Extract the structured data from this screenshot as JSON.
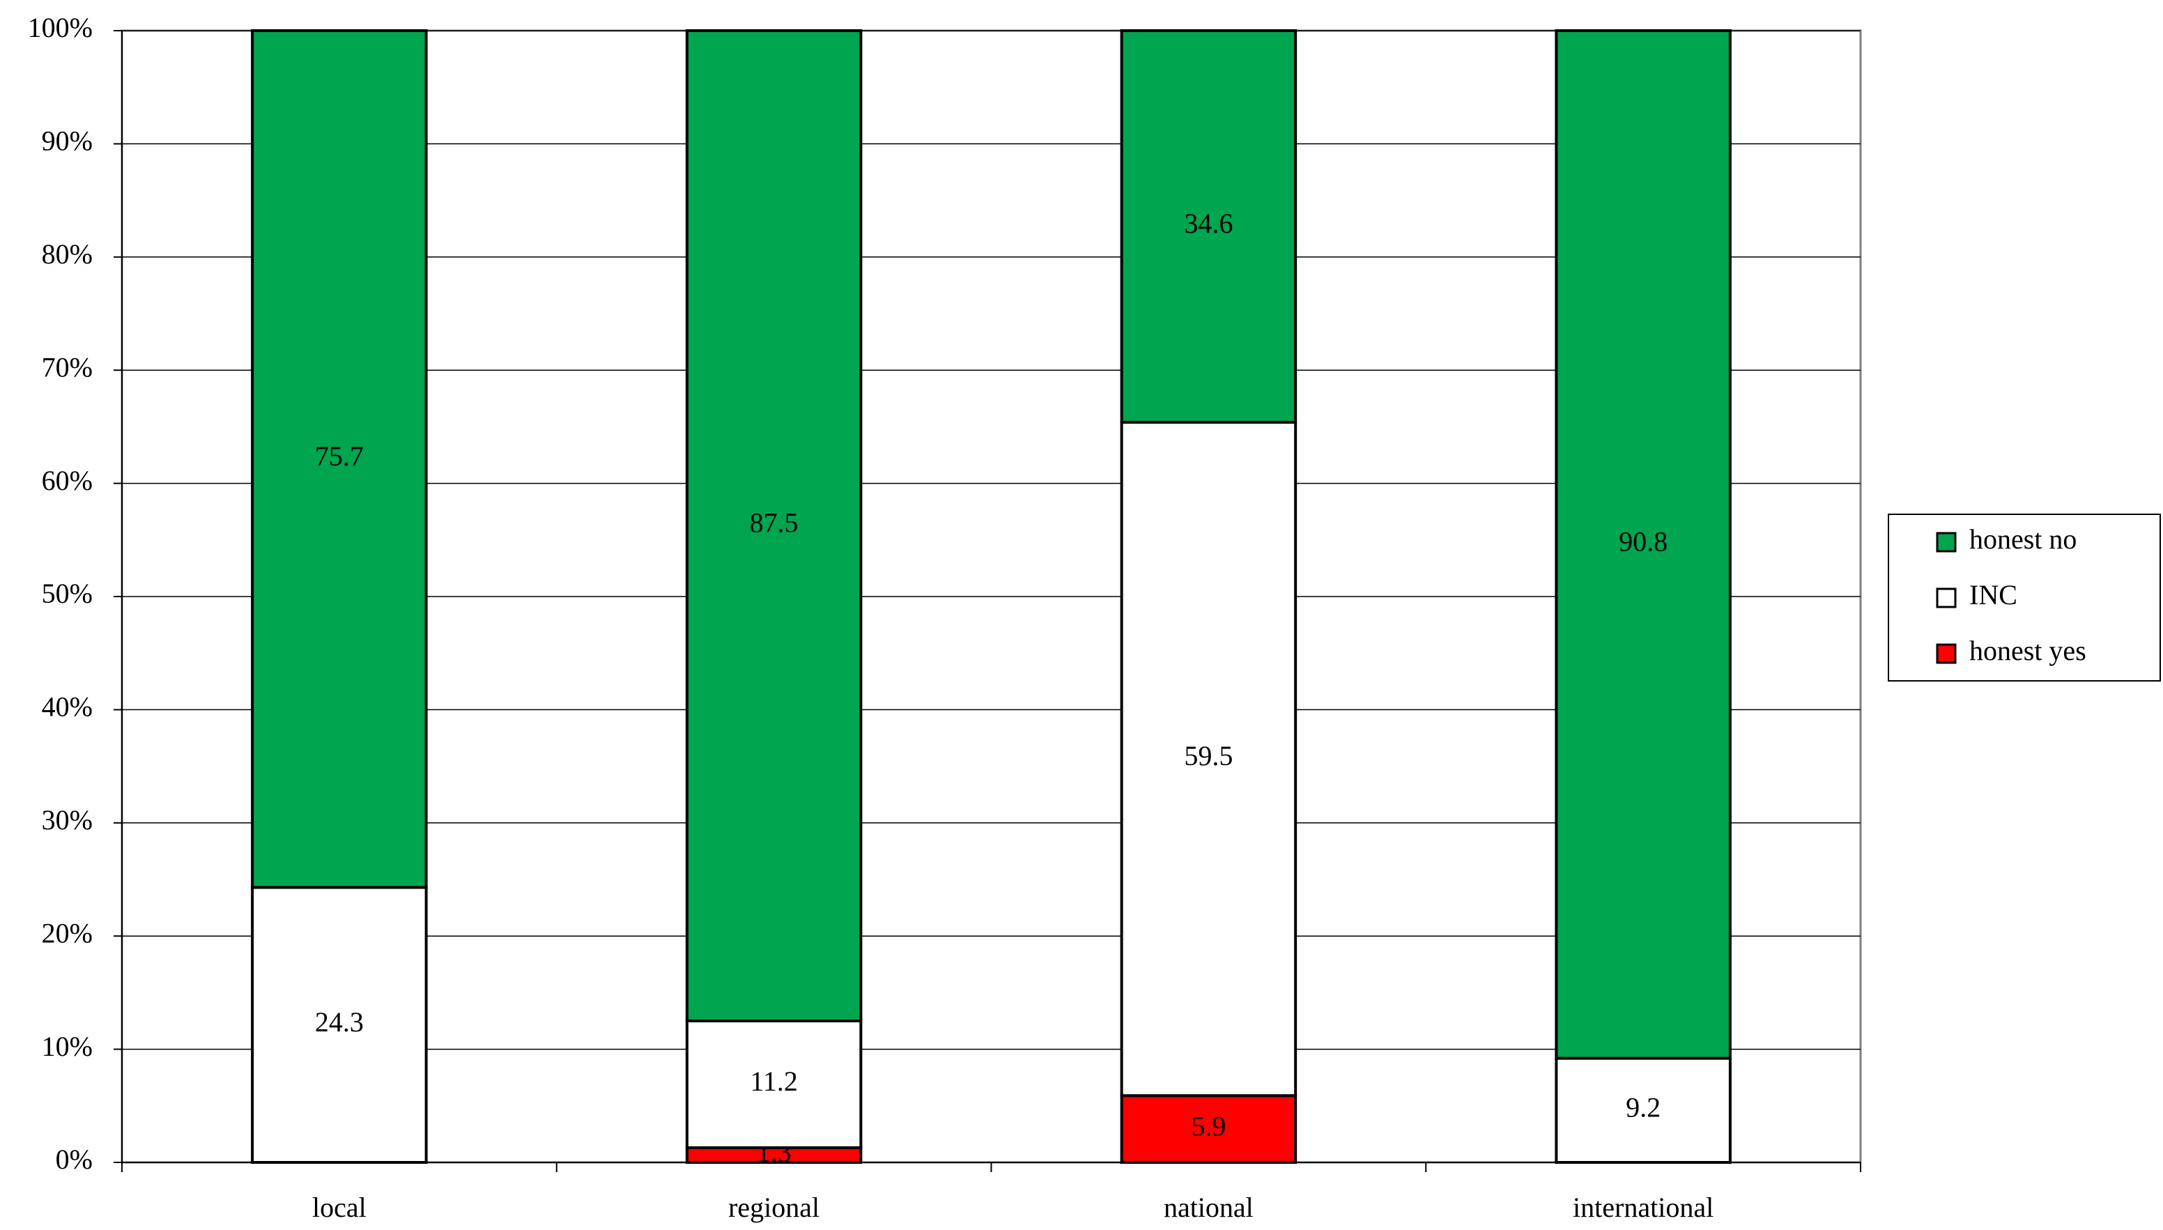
{
  "chart_data": {
    "type": "stacked_bar",
    "categories": [
      "local",
      "regional",
      "national",
      "international"
    ],
    "series": [
      {
        "name": "honest yes",
        "color": "#ff0000",
        "values": [
          0,
          1.3,
          5.9,
          0
        ]
      },
      {
        "name": "INC",
        "color": "#ffffff",
        "values": [
          24.3,
          11.2,
          59.5,
          9.2
        ]
      },
      {
        "name": "honest no",
        "color": "#00a54f",
        "values": [
          75.7,
          87.5,
          34.6,
          90.8
        ]
      }
    ],
    "ylim": [
      0,
      100
    ],
    "yticks": [
      {
        "value": 0,
        "label": "0%"
      },
      {
        "value": 10,
        "label": "10%"
      },
      {
        "value": 20,
        "label": "20%"
      },
      {
        "value": 30,
        "label": "30%"
      },
      {
        "value": 40,
        "label": "40%"
      },
      {
        "value": 50,
        "label": "50%"
      },
      {
        "value": 60,
        "label": "60%"
      },
      {
        "value": 70,
        "label": "70%"
      },
      {
        "value": 80,
        "label": "80%"
      },
      {
        "value": 90,
        "label": "90%"
      },
      {
        "value": 100,
        "label": "100%"
      }
    ],
    "grid": true,
    "legend": "right"
  }
}
